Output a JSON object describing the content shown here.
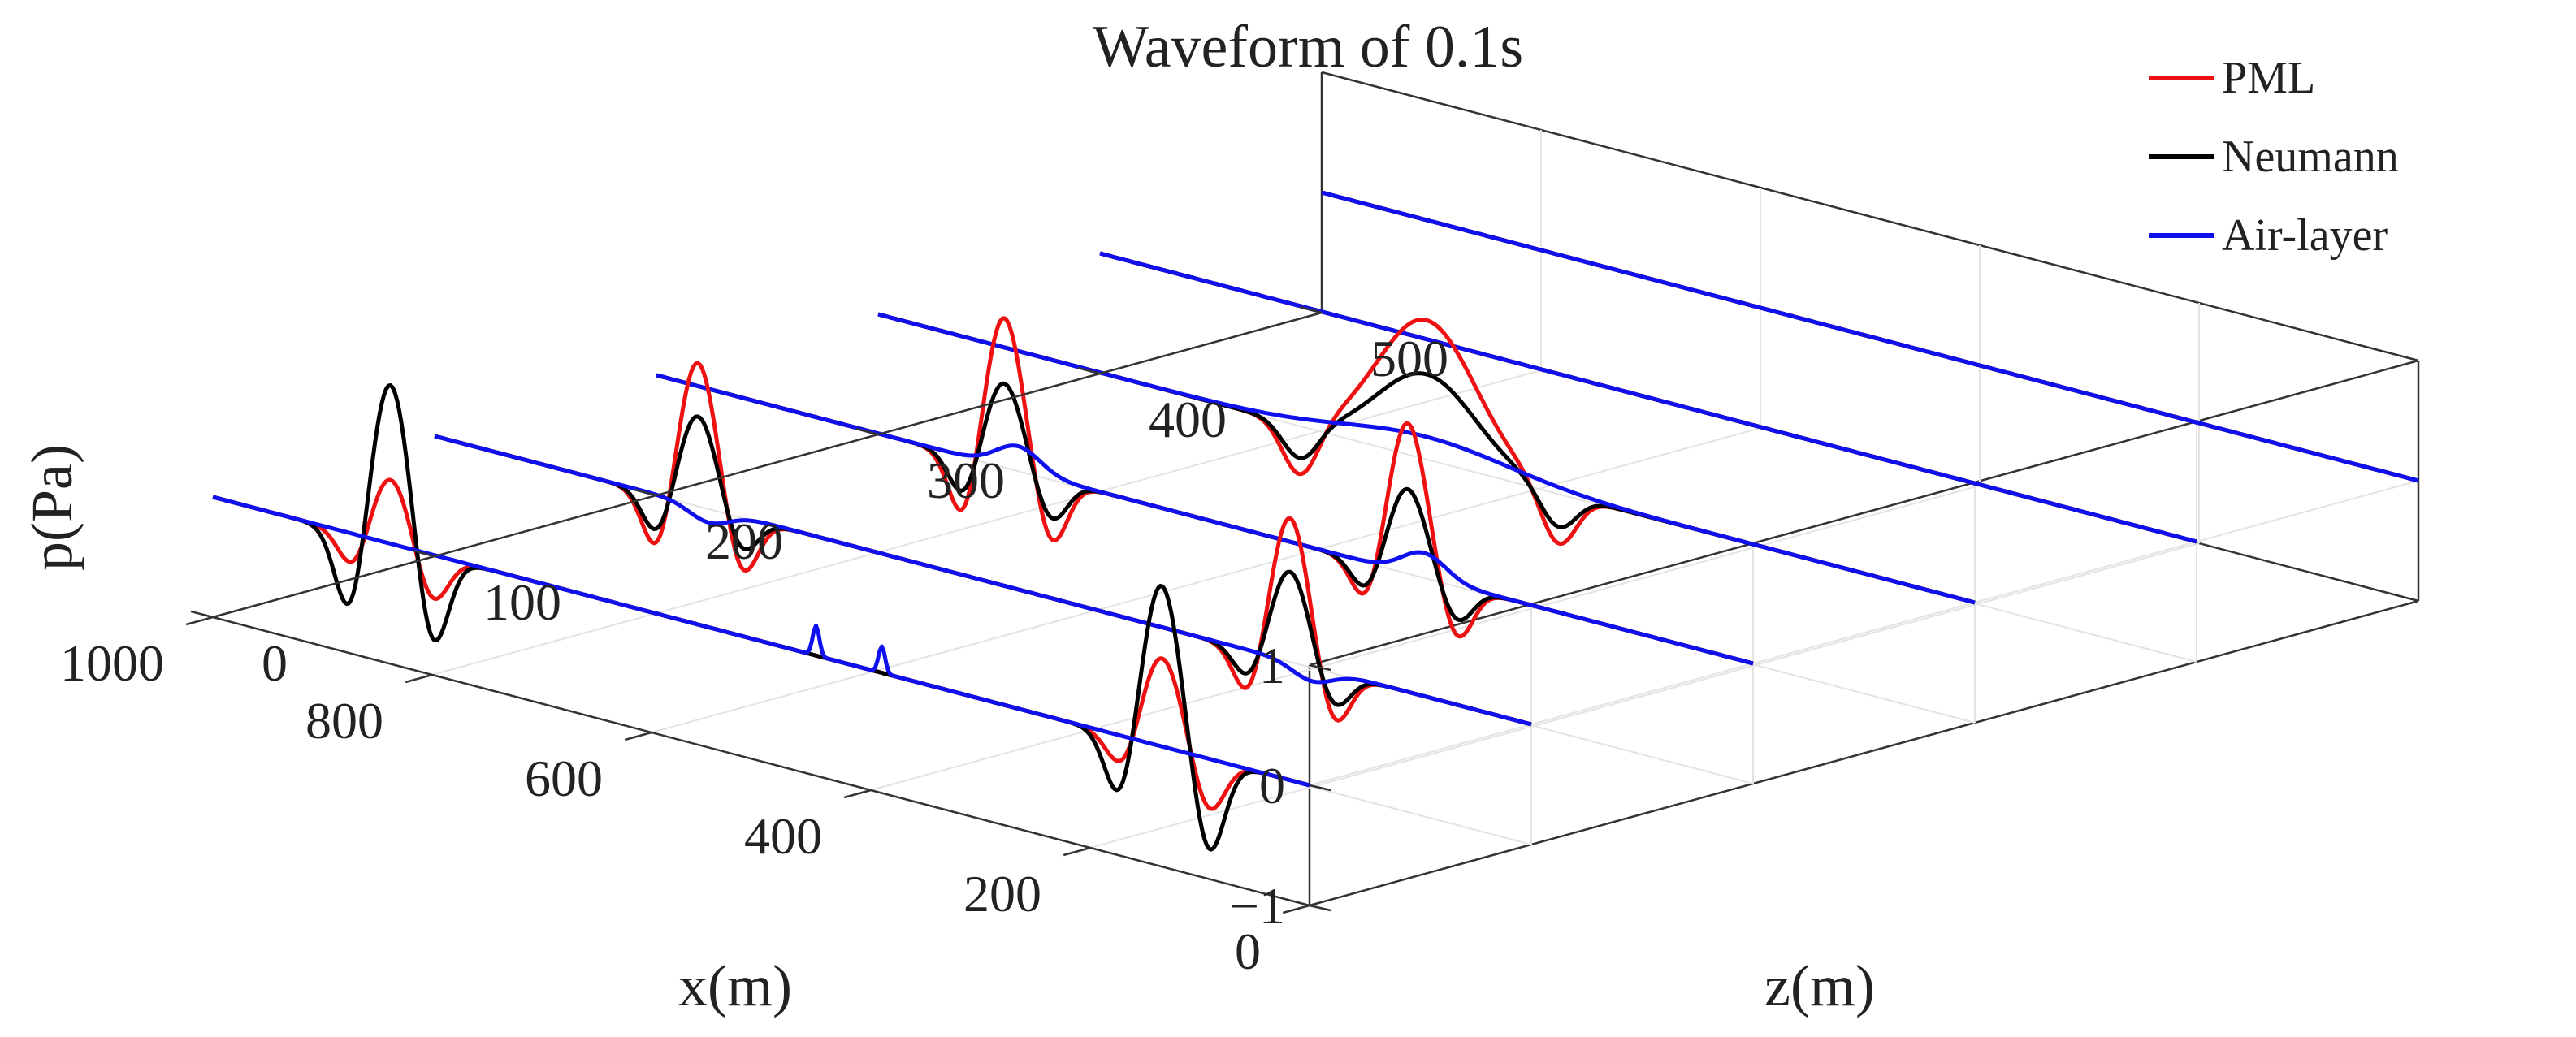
{
  "chart_data": {
    "type": "line",
    "projection": "3d-waterfall",
    "title": "Waveform of 0.1s",
    "xlabel": "x(m)",
    "ylabel": "z(m)",
    "zlabel": "p(Pa)",
    "xlim": [
      0,
      1000
    ],
    "ylim": [
      0,
      500
    ],
    "zlim": [
      -1,
      1
    ],
    "xticks": [
      "0",
      "200",
      "400",
      "600",
      "800",
      "1000"
    ],
    "yticks": [
      "0",
      "100",
      "200",
      "300",
      "400",
      "500"
    ],
    "zticks": [
      "−1",
      "0",
      "1"
    ],
    "legend": {
      "placement": "top-right",
      "entries": [
        {
          "name": "PML",
          "color": "#ee1111"
        },
        {
          "name": "Neumann",
          "color": "#000000"
        },
        {
          "name": "Air-layer",
          "color": "#1010ee"
        }
      ]
    },
    "traces": [
      {
        "z": 0,
        "x_range": [
          0,
          1000
        ],
        "PML": [
          {
            "x0": 92,
            "sigma": 14,
            "a": -0.45
          },
          {
            "x0": 135,
            "sigma": 18,
            "a": 0.75
          },
          {
            "x0": 170,
            "sigma": 14,
            "a": -0.3
          },
          {
            "x0": 800,
            "sigma": 14,
            "a": -0.4
          },
          {
            "x0": 838,
            "sigma": 17,
            "a": 0.55
          },
          {
            "x0": 872,
            "sigma": 13,
            "a": -0.3
          }
        ],
        "Neumann": [
          {
            "x0": 92,
            "sigma": 14,
            "a": -0.8
          },
          {
            "x0": 135,
            "sigma": 17,
            "a": 1.35
          },
          {
            "x0": 173,
            "sigma": 13,
            "a": -0.55
          },
          {
            "x0": 800,
            "sigma": 14,
            "a": -0.8
          },
          {
            "x0": 838,
            "sigma": 17,
            "a": 1.35
          },
          {
            "x0": 875,
            "sigma": 13,
            "a": -0.7
          }
        ],
        "Air-layer": [
          {
            "x0": 390,
            "sigma": 3,
            "a": 0.22
          },
          {
            "x0": 450,
            "sigma": 3,
            "a": 0.25
          }
        ]
      },
      {
        "z": 100,
        "x_range": [
          0,
          1000
        ],
        "PML": [
          {
            "x0": 180,
            "sigma": 14,
            "a": -0.45
          },
          {
            "x0": 220,
            "sigma": 17,
            "a": 1.2
          },
          {
            "x0": 258,
            "sigma": 13,
            "a": -0.4
          },
          {
            "x0": 720,
            "sigma": 14,
            "a": -0.5
          },
          {
            "x0": 760,
            "sigma": 17,
            "a": 1.2
          },
          {
            "x0": 797,
            "sigma": 13,
            "a": -0.5
          }
        ],
        "Neumann": [
          {
            "x0": 180,
            "sigma": 14,
            "a": -0.3
          },
          {
            "x0": 220,
            "sigma": 17,
            "a": 0.75
          },
          {
            "x0": 258,
            "sigma": 13,
            "a": -0.25
          },
          {
            "x0": 720,
            "sigma": 14,
            "a": -0.3
          },
          {
            "x0": 760,
            "sigma": 17,
            "a": 0.75
          },
          {
            "x0": 797,
            "sigma": 13,
            "a": -0.35
          }
        ],
        "Air-layer": [
          {
            "x0": 200,
            "sigma": 18,
            "a": -0.12
          },
          {
            "x0": 750,
            "sigma": 18,
            "a": -0.12
          }
        ]
      },
      {
        "z": 200,
        "x_range": [
          0,
          1000
        ],
        "PML": [
          {
            "x0": 270,
            "sigma": 14,
            "a": -0.45
          },
          {
            "x0": 315,
            "sigma": 17,
            "a": 1.25
          },
          {
            "x0": 353,
            "sigma": 13,
            "a": -0.35
          },
          {
            "x0": 640,
            "sigma": 14,
            "a": -0.55
          },
          {
            "x0": 683,
            "sigma": 17,
            "a": 1.25
          },
          {
            "x0": 720,
            "sigma": 13,
            "a": -0.55
          }
        ],
        "Neumann": [
          {
            "x0": 270,
            "sigma": 14,
            "a": -0.3
          },
          {
            "x0": 315,
            "sigma": 17,
            "a": 0.7
          },
          {
            "x0": 353,
            "sigma": 13,
            "a": -0.25
          },
          {
            "x0": 640,
            "sigma": 14,
            "a": -0.35
          },
          {
            "x0": 683,
            "sigma": 17,
            "a": 0.7
          },
          {
            "x0": 720,
            "sigma": 13,
            "a": -0.35
          }
        ],
        "Air-layer": [
          {
            "x0": 300,
            "sigma": 20,
            "a": 0.2
          },
          {
            "x0": 670,
            "sigma": 20,
            "a": 0.2
          }
        ]
      },
      {
        "z": 300,
        "x_range": [
          0,
          1000
        ],
        "PML": [
          {
            "x0": 380,
            "sigma": 16,
            "a": -0.45
          },
          {
            "x0": 500,
            "sigma": 45,
            "a": 1.15
          },
          {
            "x0": 615,
            "sigma": 16,
            "a": -0.45
          }
        ],
        "Neumann": [
          {
            "x0": 380,
            "sigma": 16,
            "a": -0.3
          },
          {
            "x0": 500,
            "sigma": 45,
            "a": 0.7
          },
          {
            "x0": 615,
            "sigma": 16,
            "a": -0.3
          }
        ],
        "Air-layer": [
          {
            "x0": 500,
            "sigma": 75,
            "a": 0.18
          }
        ]
      },
      {
        "z": 400,
        "x_range": [
          0,
          1000
        ],
        "PML": [],
        "Neumann": [],
        "Air-layer": []
      },
      {
        "z": 500,
        "x_range": [
          0,
          1000
        ],
        "PML": [],
        "Neumann": [],
        "Air-layer": []
      }
    ]
  }
}
